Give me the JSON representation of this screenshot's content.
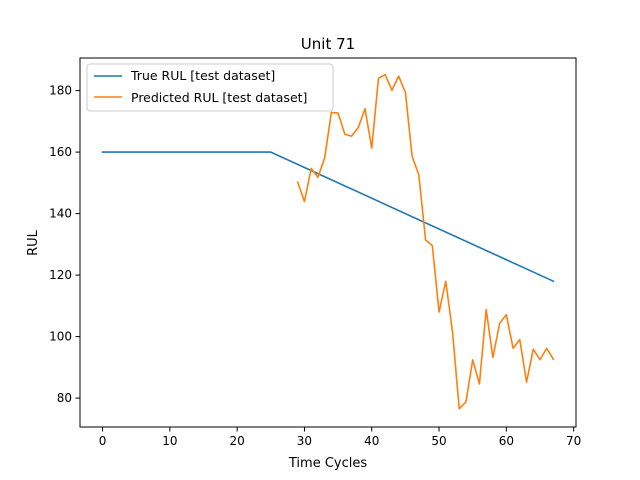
{
  "chart_data": {
    "type": "line",
    "title": "Unit 71",
    "xlabel": "Time Cycles",
    "ylabel": "RUL",
    "xlim": [
      -3.35,
      70.35
    ],
    "ylim": [
      70.6,
      190.6
    ],
    "xticks": [
      0,
      10,
      20,
      30,
      40,
      50,
      60,
      70
    ],
    "yticks": [
      80,
      100,
      120,
      140,
      160,
      180
    ],
    "grid": false,
    "legend_position": "upper left",
    "series": [
      {
        "name": "True RUL [test dataset]",
        "color": "#1f77b4",
        "x": [
          0,
          25,
          67
        ],
        "y": [
          160,
          160,
          118
        ]
      },
      {
        "name": "Predicted RUL [test dataset]",
        "color": "#ff7f0e",
        "x": [
          29,
          30,
          31,
          32,
          33,
          34,
          35,
          36,
          37,
          38,
          39,
          40,
          41,
          42,
          43,
          44,
          45,
          46,
          47,
          48,
          49,
          50,
          51,
          52,
          53,
          54,
          55,
          56,
          57,
          58,
          59,
          60,
          61,
          62,
          63,
          64,
          65,
          66,
          67
        ],
        "y": [
          150.2,
          143.9,
          154.7,
          151.8,
          158.1,
          172.9,
          172.7,
          165.8,
          165.2,
          168.0,
          174.1,
          161.3,
          184.0,
          185.2,
          180.1,
          184.7,
          179.4,
          158.6,
          152.5,
          131.4,
          129.6,
          108.0,
          118.0,
          101.5,
          76.5,
          78.8,
          92.4,
          84.6,
          108.8,
          93.2,
          104.3,
          107.1,
          96.2,
          99.0,
          85.2,
          95.9,
          92.5,
          96.2,
          92.6
        ]
      }
    ]
  }
}
